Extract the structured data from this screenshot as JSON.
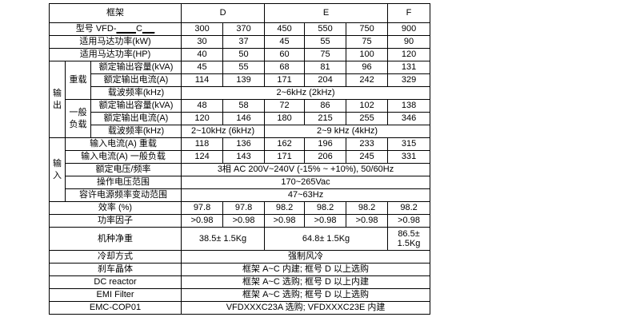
{
  "header": {
    "label": "框架",
    "frames": [
      "D",
      "E",
      "F"
    ]
  },
  "model": {
    "label_prefix": "型号 VFD-",
    "label_blank1": "_ _ _",
    "label_c": "C",
    "label_blank2": "_ _",
    "values": [
      "300",
      "370",
      "450",
      "550",
      "750",
      "900"
    ]
  },
  "kw": {
    "label": "适用马达功率(kW)",
    "values": [
      "30",
      "37",
      "45",
      "55",
      "75",
      "90"
    ]
  },
  "hp": {
    "label": "适用马达功率(HP)",
    "values": [
      "40",
      "50",
      "60",
      "75",
      "100",
      "120"
    ]
  },
  "output": {
    "group": "输出",
    "heavy": {
      "label": "重载",
      "kva": {
        "label": "额定输出容量(kVA)",
        "values": [
          "45",
          "55",
          "68",
          "81",
          "96",
          "131"
        ]
      },
      "current": {
        "label": "额定输出电流(A)",
        "values": [
          "114",
          "139",
          "171",
          "204",
          "242",
          "329"
        ]
      },
      "carrier": {
        "label": "载波频率(kHz)",
        "value": "2~6kHz (2kHz)"
      }
    },
    "normal": {
      "label": "一般负载",
      "kva": {
        "label": "额定输出容量(kVA)",
        "values": [
          "48",
          "58",
          "72",
          "86",
          "102",
          "138"
        ]
      },
      "current": {
        "label": "额定输出电流(A)",
        "values": [
          "120",
          "146",
          "180",
          "215",
          "255",
          "346"
        ]
      },
      "carrier": {
        "label": "载波频率(kHz)",
        "value_d": "2~10kHz (6kHz)",
        "value_ef": "2~9 kHz (4kHz)"
      }
    }
  },
  "input": {
    "group": "输入",
    "current_heavy": {
      "label": "输入电流(A) 重载",
      "values": [
        "118",
        "136",
        "162",
        "196",
        "233",
        "315"
      ]
    },
    "current_normal": {
      "label": "输入电流(A) 一般负载",
      "values": [
        "124",
        "143",
        "171",
        "206",
        "245",
        "331"
      ]
    },
    "voltage": {
      "label": "额定电压/频率",
      "value": "3相 AC 200V~240V (-15% ~ +10%), 50/60Hz"
    },
    "op_voltage": {
      "label": "操作电压范围",
      "value": "170~265Vac"
    },
    "freq_range": {
      "label": "容许电源频率变动范围",
      "value": "47~63Hz"
    }
  },
  "efficiency": {
    "label": "效率 (%)",
    "values": [
      "97.8",
      "97.8",
      "98.2",
      "98.2",
      "98.2",
      "98.2"
    ]
  },
  "power_factor": {
    "label": "功率因子",
    "values": [
      ">0.98",
      ">0.98",
      ">0.98",
      ">0.98",
      ">0.98",
      ">0.98"
    ]
  },
  "weight": {
    "label": "机种净重",
    "d": "38.5± 1.5Kg",
    "e": "64.8± 1.5Kg",
    "f": "86.5± 1.5Kg"
  },
  "cooling": {
    "label": "冷却方式",
    "value": "强制风冷"
  },
  "brake": {
    "label": "刹车晶体",
    "value": "框架 A~C 内建; 框号 D 以上选购"
  },
  "dc_reactor": {
    "label": "DC reactor",
    "value": "框架 A~C 选购; 框号 D 以上内建"
  },
  "emi_filter": {
    "label": "EMI Filter",
    "value": "框架 A~C 选购; 框号 D 以上选购"
  },
  "emc": {
    "label": "EMC-COP01",
    "value": "VFDXXXC23A 选购;  VFDXXXC23E 内建"
  }
}
